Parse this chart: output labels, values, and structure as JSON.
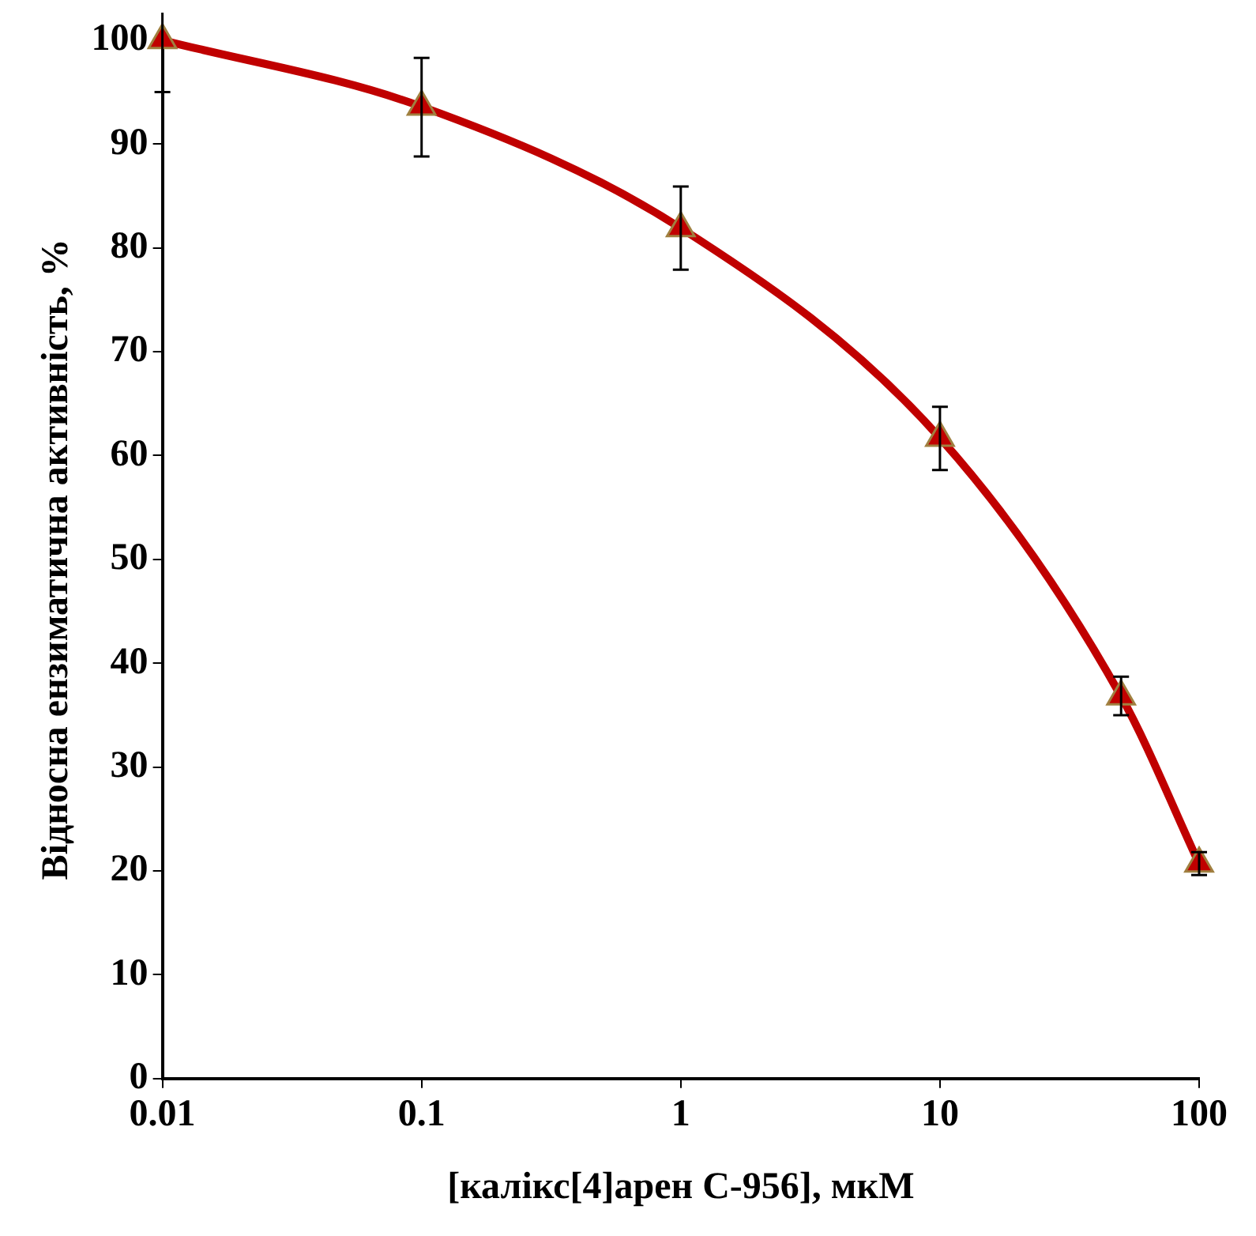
{
  "chart_data": {
    "type": "line",
    "xlabel": "[калікс[4]арен С-956], мкМ",
    "ylabel": "Відносна ензиматична активність, %",
    "x": [
      0.01,
      0.1,
      1,
      10,
      50,
      100
    ],
    "color": "#c00000",
    "values": [
      100,
      93.6,
      81.9,
      61.7,
      36.8,
      20.7
    ],
    "errors": [
      5,
      [
        88.8,
        98.3
      ],
      4,
      [
        58.6,
        64.7
      ],
      [
        35,
        38.7
      ],
      [
        19.6,
        21.8
      ]
    ],
    "log": "x",
    "xlim": [
      0.01,
      100
    ],
    "xticks": [
      0.01,
      0.1,
      1,
      10,
      100
    ],
    "ylim": [
      0,
      100
    ],
    "yticks": [
      0,
      10,
      20,
      30,
      40,
      50,
      60,
      70,
      80,
      90,
      100
    ],
    "grid": false,
    "legend": false,
    "marker": "triangle",
    "line_style": "solid"
  }
}
